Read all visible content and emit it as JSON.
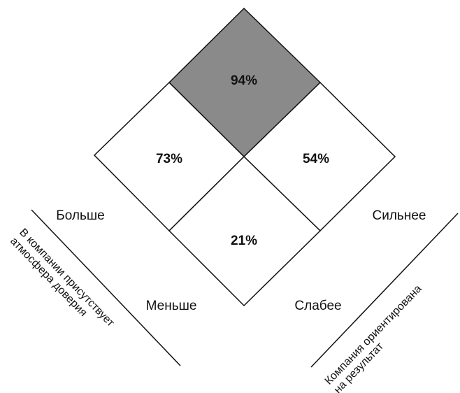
{
  "cells": [
    {
      "position": "top",
      "label": "94%"
    },
    {
      "position": "left",
      "label": "73%"
    },
    {
      "position": "right",
      "label": "54%"
    },
    {
      "position": "bottom",
      "label": "21%"
    }
  ],
  "left_axis": {
    "high": "Больше",
    "low": "Меньше",
    "title_lines": [
      "В компании присутствует",
      "атмосфера доверия"
    ]
  },
  "right_axis": {
    "high": "Сильнее",
    "low": "Слабее",
    "title_lines": [
      "Компания ориентирована",
      "на результат"
    ]
  }
}
